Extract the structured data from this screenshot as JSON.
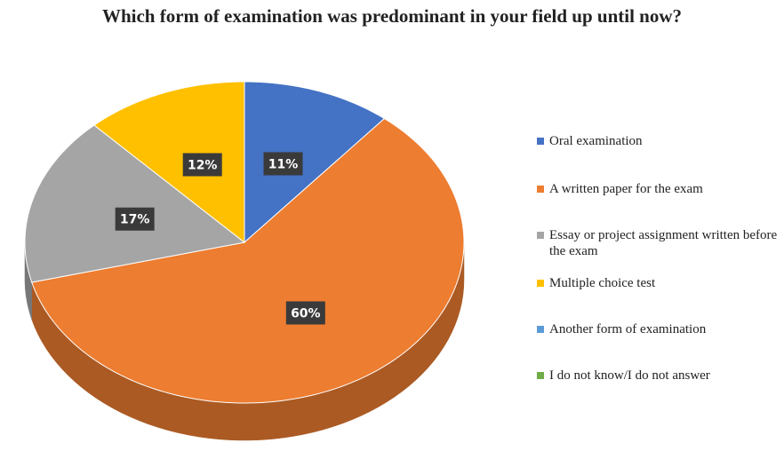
{
  "chart_data": {
    "type": "pie",
    "title": "Which form of examination was predominant in your field up until now?",
    "categories": [
      "Oral examination",
      "A written paper for the exam",
      "Essay or project assignment written before the exam",
      "Multiple choice test",
      "Another form of examination",
      "I do not know/I do not answer"
    ],
    "values": [
      11,
      60,
      17,
      12,
      0,
      0
    ],
    "value_labels": [
      "11%",
      "60%",
      "17%",
      "12%",
      null,
      null
    ],
    "colors": [
      "#4472c4",
      "#ed7d31",
      "#a5a5a5",
      "#ffc000",
      "#5b9bd5",
      "#70ad47"
    ],
    "legend": "right"
  }
}
